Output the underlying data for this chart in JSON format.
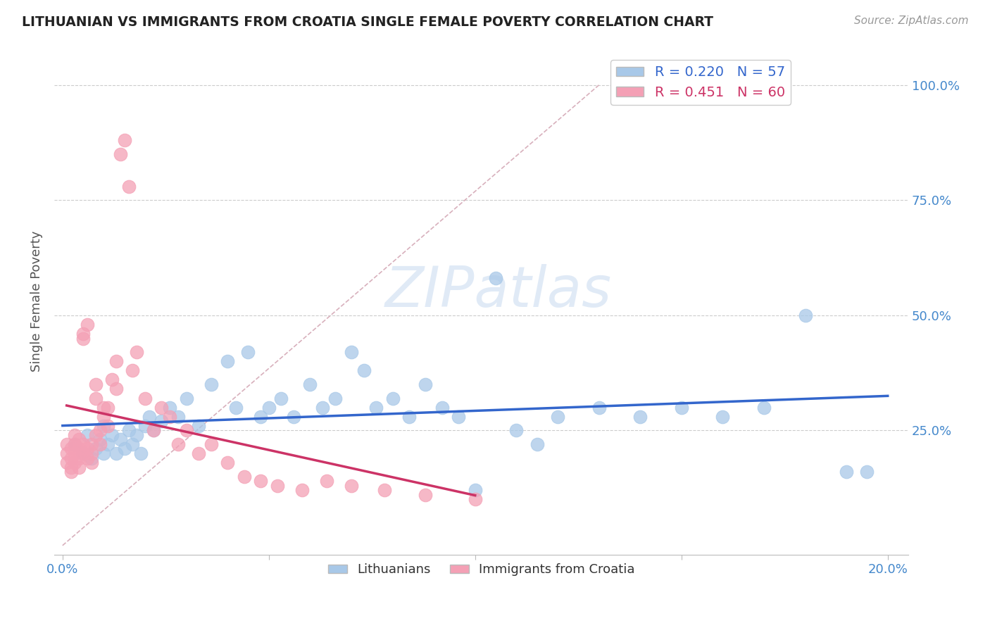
{
  "title": "LITHUANIAN VS IMMIGRANTS FROM CROATIA SINGLE FEMALE POVERTY CORRELATION CHART",
  "source": "Source: ZipAtlas.com",
  "ylabel": "Single Female Poverty",
  "xlabel_blue": "Lithuanians",
  "xlabel_pink": "Immigrants from Croatia",
  "xlim": [
    -0.002,
    0.205
  ],
  "ylim": [
    -0.02,
    1.08
  ],
  "xticks": [
    0.0,
    0.05,
    0.1,
    0.15,
    0.2
  ],
  "xtick_labels": [
    "0.0%",
    "",
    "",
    "",
    "20.0%"
  ],
  "yticks": [
    0.0,
    0.25,
    0.5,
    0.75,
    1.0
  ],
  "ytick_labels": [
    "",
    "25.0%",
    "50.0%",
    "75.0%",
    "100.0%"
  ],
  "R_blue": 0.22,
  "N_blue": 57,
  "R_pink": 0.451,
  "N_pink": 60,
  "blue_color": "#a8c8e8",
  "pink_color": "#f4a0b5",
  "blue_line_color": "#3366cc",
  "pink_line_color": "#cc3366",
  "ref_line_color": "#d8b0bc",
  "blue_points_x": [
    0.003,
    0.005,
    0.006,
    0.007,
    0.008,
    0.009,
    0.01,
    0.01,
    0.011,
    0.012,
    0.013,
    0.014,
    0.015,
    0.016,
    0.017,
    0.018,
    0.019,
    0.02,
    0.021,
    0.022,
    0.024,
    0.026,
    0.028,
    0.03,
    0.033,
    0.036,
    0.04,
    0.042,
    0.045,
    0.048,
    0.05,
    0.053,
    0.056,
    0.06,
    0.063,
    0.066,
    0.07,
    0.073,
    0.076,
    0.08,
    0.084,
    0.088,
    0.092,
    0.096,
    0.1,
    0.105,
    0.11,
    0.115,
    0.12,
    0.13,
    0.14,
    0.15,
    0.16,
    0.17,
    0.18,
    0.19,
    0.195
  ],
  "blue_points_y": [
    0.22,
    0.2,
    0.24,
    0.19,
    0.21,
    0.23,
    0.26,
    0.2,
    0.22,
    0.24,
    0.2,
    0.23,
    0.21,
    0.25,
    0.22,
    0.24,
    0.2,
    0.26,
    0.28,
    0.25,
    0.27,
    0.3,
    0.28,
    0.32,
    0.26,
    0.35,
    0.4,
    0.3,
    0.42,
    0.28,
    0.3,
    0.32,
    0.28,
    0.35,
    0.3,
    0.32,
    0.42,
    0.38,
    0.3,
    0.32,
    0.28,
    0.35,
    0.3,
    0.28,
    0.12,
    0.58,
    0.25,
    0.22,
    0.28,
    0.3,
    0.28,
    0.3,
    0.28,
    0.3,
    0.5,
    0.16,
    0.16
  ],
  "pink_points_x": [
    0.001,
    0.001,
    0.001,
    0.002,
    0.002,
    0.002,
    0.002,
    0.003,
    0.003,
    0.003,
    0.003,
    0.004,
    0.004,
    0.004,
    0.004,
    0.005,
    0.005,
    0.005,
    0.005,
    0.006,
    0.006,
    0.006,
    0.007,
    0.007,
    0.007,
    0.008,
    0.008,
    0.008,
    0.009,
    0.009,
    0.01,
    0.01,
    0.011,
    0.011,
    0.012,
    0.013,
    0.013,
    0.014,
    0.015,
    0.016,
    0.017,
    0.018,
    0.02,
    0.022,
    0.024,
    0.026,
    0.028,
    0.03,
    0.033,
    0.036,
    0.04,
    0.044,
    0.048,
    0.052,
    0.058,
    0.064,
    0.07,
    0.078,
    0.088,
    0.1
  ],
  "pink_points_y": [
    0.2,
    0.18,
    0.22,
    0.17,
    0.19,
    0.21,
    0.16,
    0.2,
    0.22,
    0.18,
    0.24,
    0.19,
    0.21,
    0.17,
    0.23,
    0.2,
    0.22,
    0.45,
    0.46,
    0.19,
    0.21,
    0.48,
    0.18,
    0.2,
    0.22,
    0.24,
    0.32,
    0.35,
    0.22,
    0.25,
    0.28,
    0.3,
    0.26,
    0.3,
    0.36,
    0.4,
    0.34,
    0.85,
    0.88,
    0.78,
    0.38,
    0.42,
    0.32,
    0.25,
    0.3,
    0.28,
    0.22,
    0.25,
    0.2,
    0.22,
    0.18,
    0.15,
    0.14,
    0.13,
    0.12,
    0.14,
    0.13,
    0.12,
    0.11,
    0.1
  ]
}
